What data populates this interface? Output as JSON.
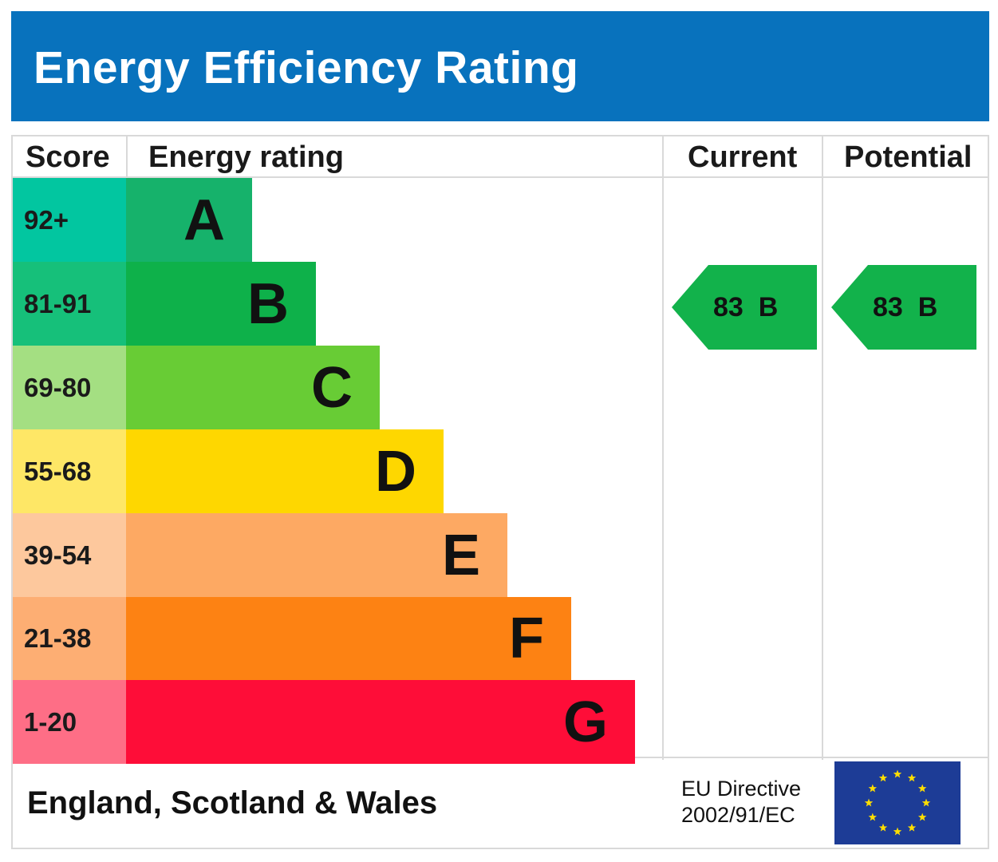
{
  "header": {
    "title": "Energy Efficiency Rating"
  },
  "columns": {
    "score": "Score",
    "rating": "Energy rating",
    "current": "Current",
    "potential": "Potential"
  },
  "colors": {
    "header_bg": "#0872bd",
    "arrow": "#12b24b"
  },
  "chart_data": {
    "type": "bar",
    "title": "Energy Efficiency Rating",
    "categories": [
      "A",
      "B",
      "C",
      "D",
      "E",
      "F",
      "G"
    ],
    "bands": [
      {
        "score": "92+",
        "rating": "A",
        "bar_color": "#16b26b",
        "score_color": "#02c6a0"
      },
      {
        "score": "81-91",
        "rating": "B",
        "bar_color": "#0eb14a",
        "score_color": "#16c07a"
      },
      {
        "score": "69-80",
        "rating": "C",
        "bar_color": "#68cc35",
        "score_color": "#a4df82"
      },
      {
        "score": "55-68",
        "rating": "D",
        "bar_color": "#fed700",
        "score_color": "#fee766"
      },
      {
        "score": "39-54",
        "rating": "E",
        "bar_color": "#fda963",
        "score_color": "#fdc89d"
      },
      {
        "score": "21-38",
        "rating": "F",
        "bar_color": "#fd8213",
        "score_color": "#fdae73"
      },
      {
        "score": "1-20",
        "rating": "G",
        "bar_color": "#fe0d38",
        "score_color": "#fe6e86"
      }
    ],
    "current": {
      "value": 83,
      "rating": "B"
    },
    "potential": {
      "value": 83,
      "rating": "B"
    }
  },
  "footer": {
    "region": "England, Scotland & Wales",
    "directive_line1": "EU Directive",
    "directive_line2": "2002/91/EC",
    "flag_icon": "eu-flag-icon"
  }
}
